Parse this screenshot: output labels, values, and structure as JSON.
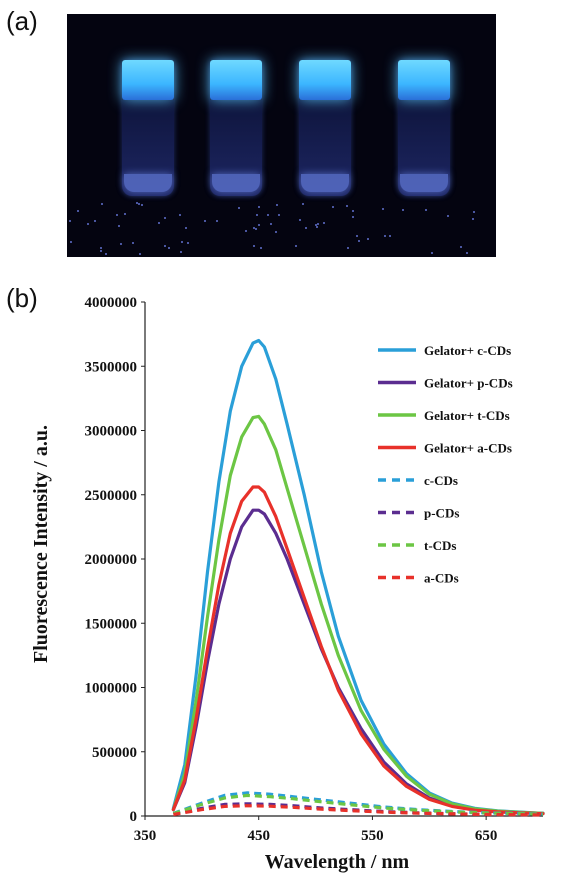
{
  "panels": {
    "a_label": "(a)",
    "b_label": "(b)"
  },
  "photo": {
    "vial_count": 4
  },
  "chart_data": {
    "type": "line",
    "title": "",
    "xlabel": "Wavelength / nm",
    "ylabel": "Fluorescence Intensity / a.u.",
    "xlim": [
      350,
      700
    ],
    "ylim": [
      0,
      4000000
    ],
    "xticks": [
      350,
      450,
      550,
      650
    ],
    "yticks": [
      0,
      500000,
      1000000,
      1500000,
      2000000,
      2500000,
      3000000,
      3500000,
      4000000
    ],
    "grid": false,
    "legend_position": "top-right",
    "series": [
      {
        "name": "Gelator+ c-CDs",
        "color": "#2a9fd8",
        "style": "solid",
        "x": [
          375,
          385,
          395,
          405,
          415,
          425,
          435,
          445,
          450,
          455,
          465,
          475,
          490,
          505,
          520,
          540,
          560,
          580,
          600,
          620,
          640,
          660,
          680,
          700
        ],
        "y": [
          60000,
          400000,
          1100000,
          1900000,
          2600000,
          3150000,
          3500000,
          3680000,
          3700000,
          3650000,
          3400000,
          3050000,
          2500000,
          1900000,
          1400000,
          900000,
          560000,
          330000,
          180000,
          100000,
          60000,
          40000,
          30000,
          20000
        ]
      },
      {
        "name": "Gelator+ p-CDs",
        "color": "#5b2d90",
        "style": "solid",
        "x": [
          375,
          385,
          395,
          405,
          415,
          425,
          435,
          445,
          450,
          455,
          465,
          475,
          490,
          505,
          520,
          540,
          560,
          580,
          600,
          620,
          640,
          660,
          680,
          700
        ],
        "y": [
          50000,
          260000,
          700000,
          1200000,
          1650000,
          2000000,
          2250000,
          2380000,
          2380000,
          2350000,
          2200000,
          2000000,
          1650000,
          1300000,
          1000000,
          680000,
          420000,
          250000,
          140000,
          80000,
          50000,
          35000,
          25000,
          20000
        ]
      },
      {
        "name": "Gelator+ t-CDs",
        "color": "#6cc644",
        "style": "solid",
        "x": [
          375,
          385,
          395,
          405,
          415,
          425,
          435,
          445,
          450,
          455,
          465,
          475,
          490,
          505,
          520,
          540,
          560,
          580,
          600,
          620,
          640,
          660,
          680,
          700
        ],
        "y": [
          50000,
          330000,
          900000,
          1550000,
          2150000,
          2650000,
          2950000,
          3100000,
          3110000,
          3050000,
          2850000,
          2550000,
          2100000,
          1650000,
          1250000,
          820000,
          520000,
          310000,
          170000,
          95000,
          55000,
          38000,
          28000,
          20000
        ]
      },
      {
        "name": "Gelator+ a-CDs",
        "color": "#e8312a",
        "style": "solid",
        "x": [
          375,
          385,
          395,
          405,
          415,
          425,
          435,
          445,
          450,
          455,
          465,
          475,
          490,
          505,
          520,
          540,
          560,
          580,
          600,
          620,
          640,
          660,
          680,
          700
        ],
        "y": [
          50000,
          280000,
          760000,
          1300000,
          1800000,
          2200000,
          2450000,
          2560000,
          2560000,
          2520000,
          2330000,
          2080000,
          1700000,
          1320000,
          980000,
          640000,
          390000,
          230000,
          130000,
          75000,
          45000,
          32000,
          24000,
          18000
        ]
      },
      {
        "name": "c-CDs",
        "color": "#2a9fd8",
        "style": "dashed",
        "x": [
          375,
          400,
          420,
          440,
          460,
          480,
          500,
          530,
          560,
          590,
          620,
          650,
          680,
          700
        ],
        "y": [
          20000,
          100000,
          160000,
          180000,
          170000,
          150000,
          130000,
          100000,
          70000,
          50000,
          35000,
          25000,
          20000,
          15000
        ]
      },
      {
        "name": "p-CDs",
        "color": "#5b2d90",
        "style": "dashed",
        "x": [
          375,
          400,
          420,
          440,
          460,
          480,
          500,
          530,
          560,
          590,
          620,
          650,
          680,
          700
        ],
        "y": [
          15000,
          60000,
          90000,
          95000,
          90000,
          80000,
          65000,
          50000,
          35000,
          25000,
          18000,
          14000,
          12000,
          10000
        ]
      },
      {
        "name": "t-CDs",
        "color": "#6cc644",
        "style": "dashed",
        "x": [
          375,
          400,
          420,
          440,
          460,
          480,
          500,
          530,
          560,
          590,
          620,
          650,
          680,
          700
        ],
        "y": [
          18000,
          90000,
          140000,
          160000,
          150000,
          135000,
          115000,
          88000,
          62000,
          45000,
          32000,
          23000,
          18000,
          14000
        ]
      },
      {
        "name": "a-CDs",
        "color": "#e8312a",
        "style": "dashed",
        "x": [
          375,
          400,
          420,
          440,
          460,
          480,
          500,
          530,
          560,
          590,
          620,
          650,
          680,
          700
        ],
        "y": [
          12000,
          50000,
          75000,
          80000,
          76000,
          68000,
          56000,
          42000,
          30000,
          22000,
          16000,
          12000,
          10000,
          8000
        ]
      }
    ]
  }
}
